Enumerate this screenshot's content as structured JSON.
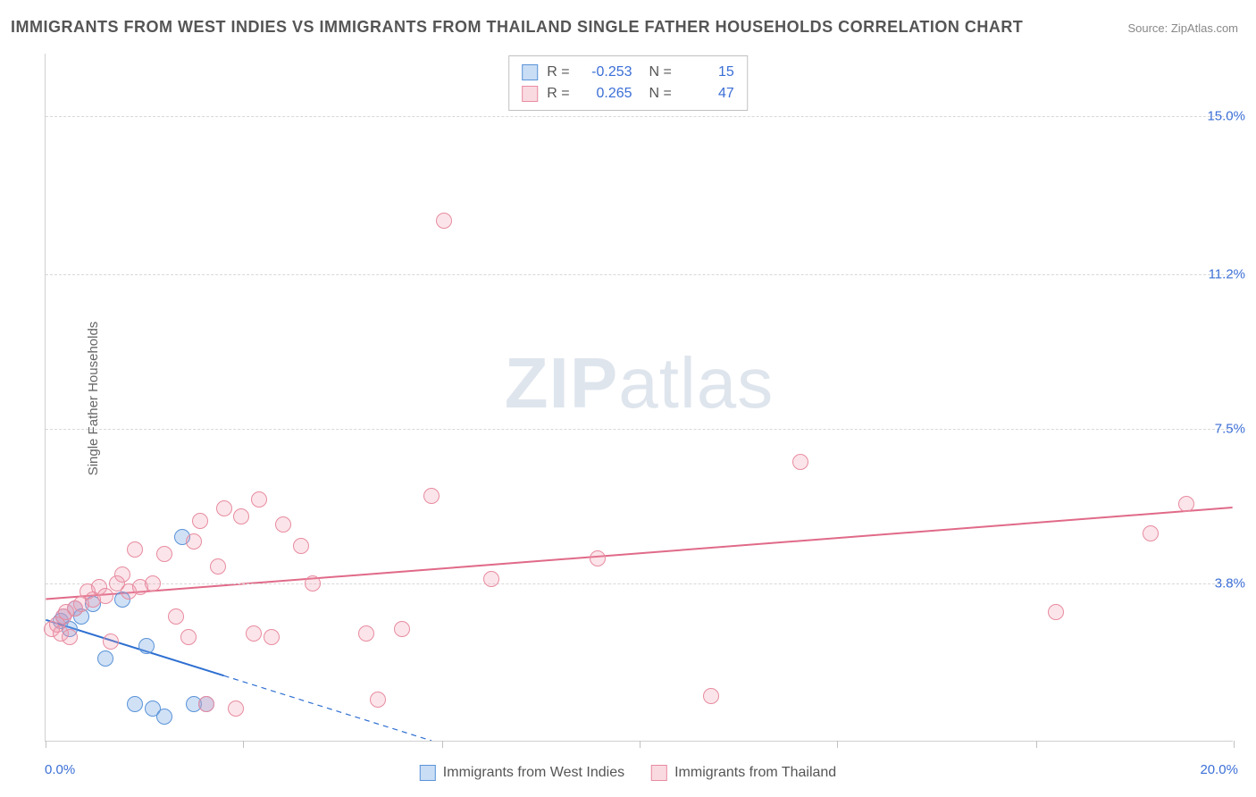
{
  "title": "IMMIGRANTS FROM WEST INDIES VS IMMIGRANTS FROM THAILAND SINGLE FATHER HOUSEHOLDS CORRELATION CHART",
  "source": "Source: ZipAtlas.com",
  "watermark": {
    "bold": "ZIP",
    "rest": "atlas"
  },
  "y_axis_label": "Single Father Households",
  "chart": {
    "type": "scatter",
    "xlim": [
      0,
      20
    ],
    "ylim": [
      0,
      16.5
    ],
    "x_min_label": "0.0%",
    "x_max_label": "20.0%",
    "y_ticks": [
      {
        "value": 3.8,
        "label": "3.8%"
      },
      {
        "value": 7.5,
        "label": "7.5%"
      },
      {
        "value": 11.2,
        "label": "11.2%"
      },
      {
        "value": 15.0,
        "label": "15.0%"
      }
    ],
    "x_ticks": [
      0,
      3.33,
      6.67,
      10,
      13.33,
      16.67,
      20
    ],
    "background_color": "#ffffff",
    "grid_color": "#d8d8d8",
    "point_radius": 9,
    "series": [
      {
        "name": "Immigrants from West Indies",
        "color_fill": "rgba(120,170,230,0.35)",
        "color_stroke": "#5a93d8",
        "class": "blue",
        "stats": {
          "R": "-0.253",
          "N": "15"
        },
        "trend": {
          "x1": 0,
          "y1": 2.9,
          "x2": 6.5,
          "y2": 0,
          "solid_until_x": 3.0,
          "color": "#2e6fd1",
          "width": 2
        },
        "points": [
          [
            0.25,
            2.9
          ],
          [
            0.3,
            3.0
          ],
          [
            0.4,
            2.7
          ],
          [
            0.5,
            3.2
          ],
          [
            0.6,
            3.0
          ],
          [
            0.8,
            3.3
          ],
          [
            1.0,
            2.0
          ],
          [
            1.3,
            3.4
          ],
          [
            1.5,
            0.9
          ],
          [
            1.7,
            2.3
          ],
          [
            1.8,
            0.8
          ],
          [
            2.0,
            0.6
          ],
          [
            2.3,
            4.9
          ],
          [
            2.5,
            0.9
          ],
          [
            2.7,
            0.9
          ]
        ]
      },
      {
        "name": "Immigrants from Thailand",
        "color_fill": "rgba(240,150,170,0.25)",
        "color_stroke": "#e88ba0",
        "class": "pink",
        "stats": {
          "R": "0.265",
          "N": "47"
        },
        "trend": {
          "x1": 0,
          "y1": 3.4,
          "x2": 20,
          "y2": 5.6,
          "solid_until_x": 20,
          "color": "#e06a88",
          "width": 2
        },
        "points": [
          [
            0.1,
            2.7
          ],
          [
            0.2,
            2.8
          ],
          [
            0.25,
            2.6
          ],
          [
            0.3,
            3.0
          ],
          [
            0.35,
            3.1
          ],
          [
            0.4,
            2.5
          ],
          [
            0.5,
            3.2
          ],
          [
            0.6,
            3.3
          ],
          [
            0.7,
            3.6
          ],
          [
            0.8,
            3.4
          ],
          [
            0.9,
            3.7
          ],
          [
            1.0,
            3.5
          ],
          [
            1.1,
            2.4
          ],
          [
            1.2,
            3.8
          ],
          [
            1.3,
            4.0
          ],
          [
            1.4,
            3.6
          ],
          [
            1.5,
            4.6
          ],
          [
            1.6,
            3.7
          ],
          [
            1.8,
            3.8
          ],
          [
            2.0,
            4.5
          ],
          [
            2.2,
            3.0
          ],
          [
            2.4,
            2.5
          ],
          [
            2.5,
            4.8
          ],
          [
            2.6,
            5.3
          ],
          [
            2.7,
            0.9
          ],
          [
            2.9,
            4.2
          ],
          [
            3.0,
            5.6
          ],
          [
            3.2,
            0.8
          ],
          [
            3.3,
            5.4
          ],
          [
            3.5,
            2.6
          ],
          [
            3.6,
            5.8
          ],
          [
            3.8,
            2.5
          ],
          [
            4.0,
            5.2
          ],
          [
            4.3,
            4.7
          ],
          [
            4.5,
            3.8
          ],
          [
            5.4,
            2.6
          ],
          [
            5.6,
            1.0
          ],
          [
            6.0,
            2.7
          ],
          [
            6.5,
            5.9
          ],
          [
            6.7,
            12.5
          ],
          [
            7.5,
            3.9
          ],
          [
            9.3,
            4.4
          ],
          [
            11.2,
            1.1
          ],
          [
            12.7,
            6.7
          ],
          [
            17.0,
            3.1
          ],
          [
            18.6,
            5.0
          ],
          [
            19.2,
            5.7
          ]
        ]
      }
    ]
  },
  "legend": {
    "items": [
      {
        "label": "Immigrants from West Indies",
        "class": "blue"
      },
      {
        "label": "Immigrants from Thailand",
        "class": "pink"
      }
    ]
  }
}
